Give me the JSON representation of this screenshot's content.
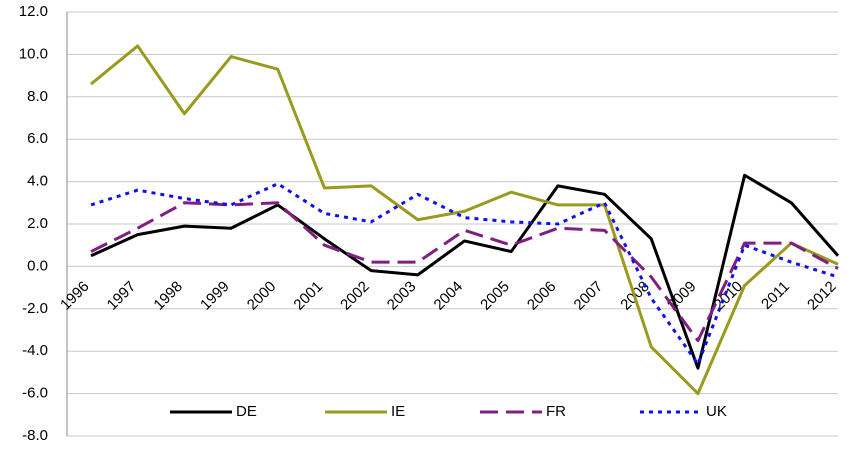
{
  "chart_data": {
    "type": "line",
    "categories": [
      "1996",
      "1997",
      "1998",
      "1999",
      "2000",
      "2001",
      "2002",
      "2003",
      "2004",
      "2005",
      "2006",
      "2007",
      "2008",
      "2009",
      "2010",
      "2011",
      "2012"
    ],
    "series": [
      {
        "name": "DE",
        "color": "#000000",
        "dash": "solid",
        "values": [
          0.5,
          1.5,
          1.9,
          1.8,
          2.9,
          1.3,
          -0.2,
          -0.4,
          1.2,
          0.7,
          3.8,
          3.4,
          1.3,
          -4.8,
          4.3,
          3.0,
          0.5
        ]
      },
      {
        "name": "IE",
        "color": "#9a9a1e",
        "dash": "solid",
        "values": [
          8.6,
          10.4,
          7.2,
          9.9,
          9.3,
          3.7,
          3.8,
          2.2,
          2.6,
          3.5,
          2.9,
          2.9,
          -3.8,
          -6.0,
          -0.9,
          1.1,
          0.1
        ]
      },
      {
        "name": "FR",
        "color": "#7f1f7f",
        "dash": "dashed",
        "values": [
          0.7,
          1.8,
          3.0,
          2.9,
          3.0,
          1.0,
          0.2,
          0.2,
          1.7,
          1.0,
          1.8,
          1.7,
          -0.5,
          -3.5,
          1.1,
          1.1,
          -0.1
        ]
      },
      {
        "name": "UK",
        "color": "#1010ee",
        "dash": "dotted",
        "values": [
          2.9,
          3.6,
          3.2,
          2.9,
          3.9,
          2.5,
          2.1,
          3.4,
          2.3,
          2.1,
          2.0,
          3.0,
          -1.5,
          -4.6,
          1.0,
          0.2,
          -0.5
        ]
      }
    ],
    "ylim": [
      -8,
      12
    ],
    "yticks": [
      {
        "value": -8,
        "label": "-8.0"
      },
      {
        "value": -6,
        "label": "-6.0"
      },
      {
        "value": -4,
        "label": "-4.0"
      },
      {
        "value": -2,
        "label": "-2.0"
      },
      {
        "value": 0,
        "label": "0.0"
      },
      {
        "value": 2,
        "label": "2.0"
      },
      {
        "value": 4,
        "label": "4.0"
      },
      {
        "value": 6,
        "label": "6.0"
      },
      {
        "value": 8,
        "label": "8.0"
      },
      {
        "value": 10,
        "label": "10.0"
      },
      {
        "value": 12,
        "label": "12.0"
      }
    ],
    "grid": true,
    "legend": "bottom"
  }
}
